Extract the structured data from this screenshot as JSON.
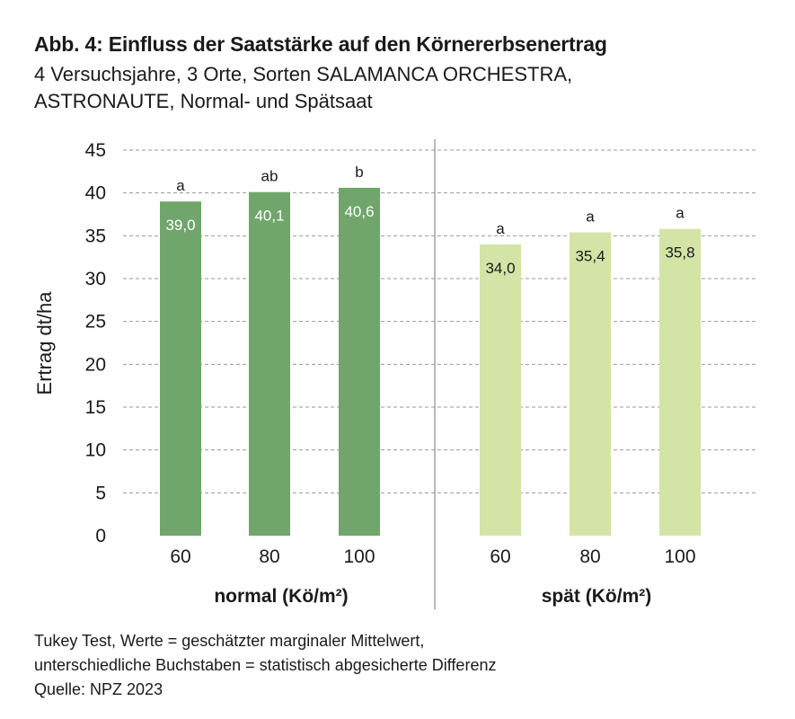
{
  "chart_data": {
    "type": "bar",
    "title": "Abb. 4: Einfluss der Saatstärke auf den Körnererbsenertrag",
    "subtitle_lines": [
      "4 Versuchsjahre, 3 Orte, Sorten SALAMANCA ORCHESTRA,",
      "ASTRONAUTE, Normal- und Spätsaat"
    ],
    "ylabel": "Ertrag dt/ha",
    "ylim": [
      0,
      45
    ],
    "yticks": [
      "0",
      "5",
      "10",
      "15",
      "20",
      "25",
      "30",
      "35",
      "40",
      "45"
    ],
    "grid": true,
    "groups": [
      {
        "name": "normal (Kö/m²)",
        "color": "#70a66b",
        "label_color": "#ffffff",
        "categories": [
          "60",
          "80",
          "100"
        ],
        "values": [
          39.0,
          40.1,
          40.6
        ],
        "value_labels": [
          "39,0",
          "40,1",
          "40,6"
        ],
        "significance": [
          "a",
          "ab",
          "b"
        ]
      },
      {
        "name": "spät (Kö/m²)",
        "color": "#d3e4a6",
        "label_color": "#1a1a1a",
        "categories": [
          "60",
          "80",
          "100"
        ],
        "values": [
          34.0,
          35.4,
          35.8
        ],
        "value_labels": [
          "34,0",
          "35,4",
          "35,8"
        ],
        "significance": [
          "a",
          "a",
          "a"
        ]
      }
    ]
  },
  "footer": {
    "line1": "Tukey Test, Werte = geschätzter marginaler Mittelwert,",
    "line2": "unterschiedliche Buchstaben = statistisch abgesicherte Differenz",
    "line3": "Quelle: NPZ 2023"
  }
}
